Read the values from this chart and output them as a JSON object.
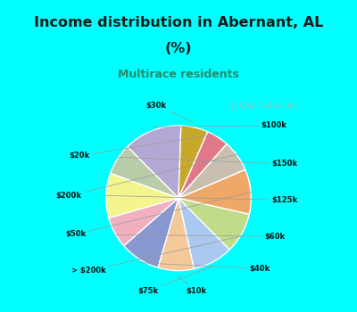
{
  "title_line1": "Income distribution in Abernant, AL",
  "title_line2": "(%)",
  "subtitle": "Multirace residents",
  "title_color": "#1a1a1a",
  "subtitle_color": "#2a8a6a",
  "bg_color": "#00FFFF",
  "chart_bg": "#e0f2e0",
  "watermark": "ⓘ City-Data.com",
  "labels": [
    "$100k",
    "$150k",
    "$125k",
    "$60k",
    "$40k",
    "$10k",
    "$75k",
    "> $200k",
    "$50k",
    "$200k",
    "$20k",
    "$30k"
  ],
  "values": [
    13,
    7,
    10,
    7,
    9,
    8,
    9,
    9,
    10,
    7,
    5,
    6
  ],
  "colors": [
    "#b3a8d4",
    "#b8cca8",
    "#f5f590",
    "#f0b0c0",
    "#8898d0",
    "#f5c89a",
    "#aac8f0",
    "#c0dc88",
    "#f0a868",
    "#c8bfb0",
    "#e07888",
    "#c8a82a"
  ],
  "startangle": 88
}
